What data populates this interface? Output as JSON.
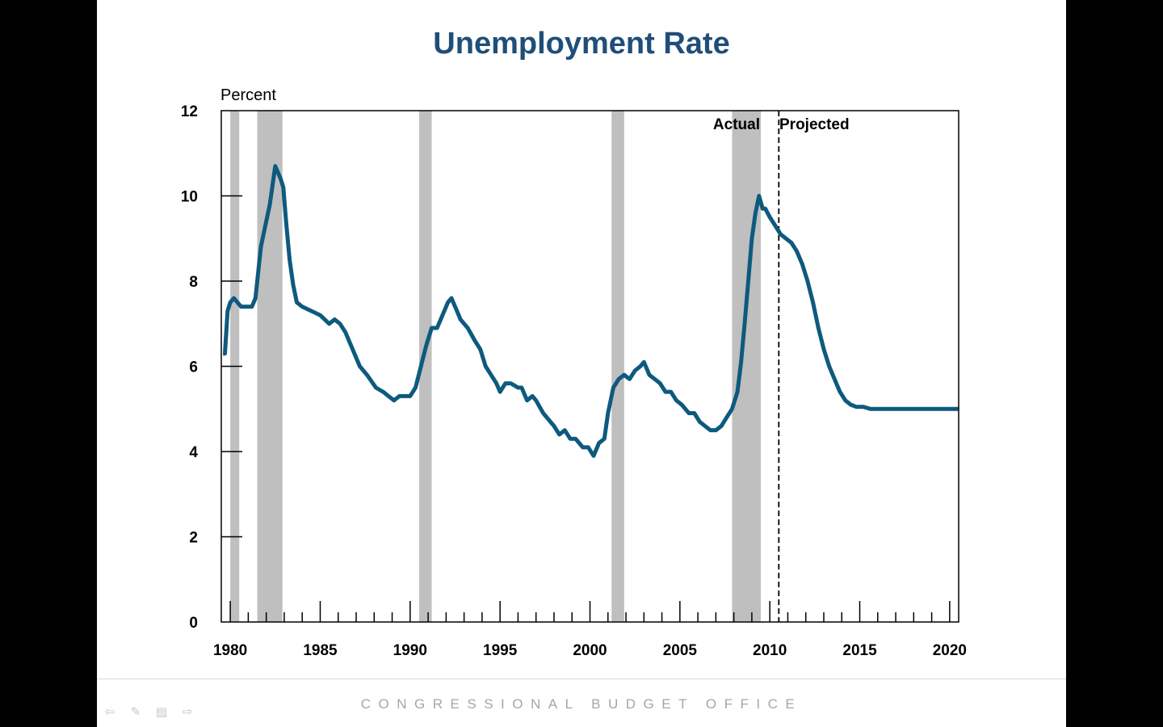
{
  "chart_data": {
    "type": "line",
    "title": "Unemployment Rate",
    "ylabel": "Percent",
    "xlabel": "",
    "xlim": [
      1979.5,
      2020.5
    ],
    "ylim": [
      0,
      12
    ],
    "yticks": [
      0,
      2,
      4,
      6,
      8,
      10,
      12
    ],
    "xtick_labels": [
      "1980",
      "1985",
      "1990",
      "1995",
      "2000",
      "2005",
      "2010",
      "2015",
      "2020"
    ],
    "recessions": [
      [
        1980.0,
        1980.5
      ],
      [
        1981.5,
        1982.9
      ],
      [
        1990.5,
        1991.2
      ],
      [
        2001.2,
        2001.9
      ],
      [
        2007.9,
        2009.5
      ]
    ],
    "divider_x": 2010.5,
    "annotations": {
      "actual": "Actual",
      "projected": "Projected"
    },
    "series": [
      {
        "name": "Unemployment Rate",
        "color": "#0e5a7e",
        "x": [
          1979.6,
          1979.7,
          1979.85,
          1980.0,
          1980.2,
          1980.4,
          1980.6,
          1981.0,
          1981.2,
          1981.4,
          1981.7,
          1981.9,
          1982.2,
          1982.5,
          1982.8,
          1982.95,
          1983.1,
          1983.3,
          1983.5,
          1983.7,
          1984.0,
          1984.5,
          1985.0,
          1985.5,
          1985.8,
          1986.1,
          1986.4,
          1986.8,
          1987.2,
          1987.6,
          1988.1,
          1988.5,
          1988.8,
          1989.1,
          1989.4,
          1989.7,
          1990.0,
          1990.3,
          1990.6,
          1990.9,
          1991.2,
          1991.5,
          1991.8,
          1992.1,
          1992.3,
          1992.5,
          1992.8,
          1993.2,
          1993.6,
          1993.9,
          1994.2,
          1994.5,
          1994.8,
          1995.0,
          1995.3,
          1995.6,
          1996.0,
          1996.2,
          1996.5,
          1996.8,
          1997.0,
          1997.4,
          1997.8,
          1998.0,
          1998.3,
          1998.6,
          1998.9,
          1999.2,
          1999.6,
          1999.9,
          2000.2,
          2000.5,
          2000.8,
          2001.0,
          2001.3,
          2001.6,
          2001.9,
          2002.2,
          2002.5,
          2002.8,
          2003.0,
          2003.3,
          2003.6,
          2003.9,
          2004.2,
          2004.5,
          2004.8,
          2005.1,
          2005.5,
          2005.8,
          2006.1,
          2006.4,
          2006.7,
          2007.0,
          2007.3,
          2007.6,
          2007.9,
          2008.2,
          2008.4,
          2008.6,
          2008.8,
          2009.0,
          2009.2,
          2009.4,
          2009.6,
          2009.75,
          2010.0,
          2010.3,
          2010.6,
          2010.9,
          2011.2,
          2011.5,
          2011.8,
          2012.1,
          2012.4,
          2012.7,
          2013.0,
          2013.3,
          2013.6,
          2013.9,
          2014.2,
          2014.5,
          2014.8,
          2015.2,
          2015.6,
          2016.0,
          2016.5,
          2017.0,
          2018.0,
          2019.0,
          2020.0,
          2020.5
        ],
        "values": [
          6.3,
          6.3,
          7.3,
          7.5,
          7.6,
          7.5,
          7.4,
          7.4,
          7.4,
          7.6,
          8.8,
          9.2,
          9.8,
          10.7,
          10.4,
          10.2,
          9.4,
          8.5,
          7.9,
          7.5,
          7.4,
          7.3,
          7.2,
          7.0,
          7.1,
          7.0,
          6.8,
          6.4,
          6.0,
          5.8,
          5.5,
          5.4,
          5.3,
          5.2,
          5.3,
          5.3,
          5.3,
          5.5,
          6.0,
          6.5,
          6.9,
          6.9,
          7.2,
          7.5,
          7.6,
          7.4,
          7.1,
          6.9,
          6.6,
          6.4,
          6.0,
          5.8,
          5.6,
          5.4,
          5.6,
          5.6,
          5.5,
          5.5,
          5.2,
          5.3,
          5.2,
          4.9,
          4.7,
          4.6,
          4.4,
          4.5,
          4.3,
          4.3,
          4.1,
          4.1,
          3.9,
          4.2,
          4.3,
          4.9,
          5.5,
          5.7,
          5.8,
          5.7,
          5.9,
          6.0,
          6.1,
          5.8,
          5.7,
          5.6,
          5.4,
          5.4,
          5.2,
          5.1,
          4.9,
          4.9,
          4.7,
          4.6,
          4.5,
          4.5,
          4.6,
          4.8,
          5.0,
          5.4,
          6.1,
          7.0,
          8.0,
          9.0,
          9.6,
          10.0,
          9.7,
          9.7,
          9.5,
          9.3,
          9.1,
          9.0,
          8.9,
          8.7,
          8.4,
          8.0,
          7.5,
          6.9,
          6.4,
          6.0,
          5.7,
          5.4,
          5.2,
          5.1,
          5.05,
          5.05,
          5.0,
          5.0,
          5.0,
          5.0,
          5.0,
          5.0,
          5.0,
          5.0
        ]
      }
    ]
  },
  "footer": {
    "organization": "CONGRESSIONAL BUDGET OFFICE",
    "nav_icons": [
      "back-arrow-icon",
      "pen-icon",
      "menu-icon",
      "forward-arrow-icon"
    ]
  }
}
